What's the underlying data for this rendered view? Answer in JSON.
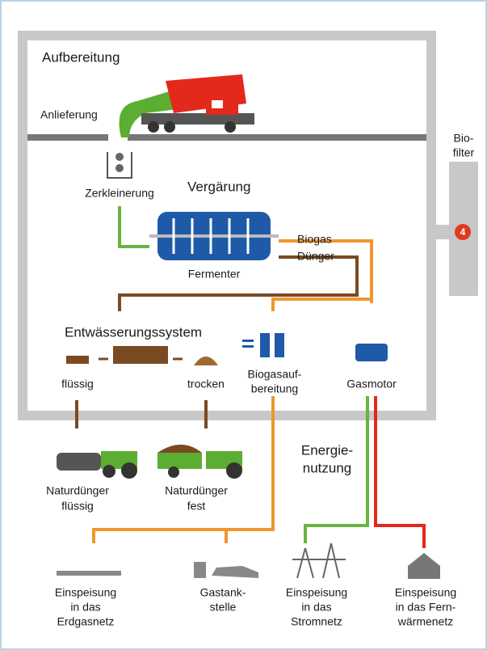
{
  "title": "Aufbereitung",
  "nodes": [
    {
      "lines": [
        "Anlieferung"
      ]
    },
    {
      "lines": [
        "Bio-",
        "filter"
      ]
    },
    {
      "lines": [
        "4"
      ]
    },
    {
      "lines": [
        "Zerkleinerung"
      ]
    },
    {
      "lines": [
        "Vergärung"
      ]
    },
    {
      "lines": [
        "Biogas"
      ]
    },
    {
      "lines": [
        "Dünger"
      ]
    },
    {
      "lines": [
        "Fermenter"
      ]
    },
    {
      "lines": [
        "Entwässerungssystem"
      ]
    },
    {
      "lines": [
        "flüssig"
      ]
    },
    {
      "lines": [
        "trocken"
      ]
    },
    {
      "lines": [
        "Biogasauf-",
        "bereitung"
      ]
    },
    {
      "lines": [
        "Gasmotor"
      ]
    },
    {
      "lines": [
        "Energie-",
        "nutzung"
      ]
    },
    {
      "lines": [
        "Naturdünger",
        "flüssig"
      ]
    },
    {
      "lines": [
        "Naturdünger",
        "fest"
      ]
    },
    {
      "lines": [
        "Einspeisung",
        "in das",
        "Erdgasnetz"
      ]
    },
    {
      "lines": [
        "Gastank-",
        "stelle"
      ]
    },
    {
      "lines": [
        "Einspeisung",
        "in das",
        "Stromnetz"
      ]
    },
    {
      "lines": [
        "Einspeisung",
        "in das Fern-",
        "wärmenetz"
      ]
    }
  ]
}
